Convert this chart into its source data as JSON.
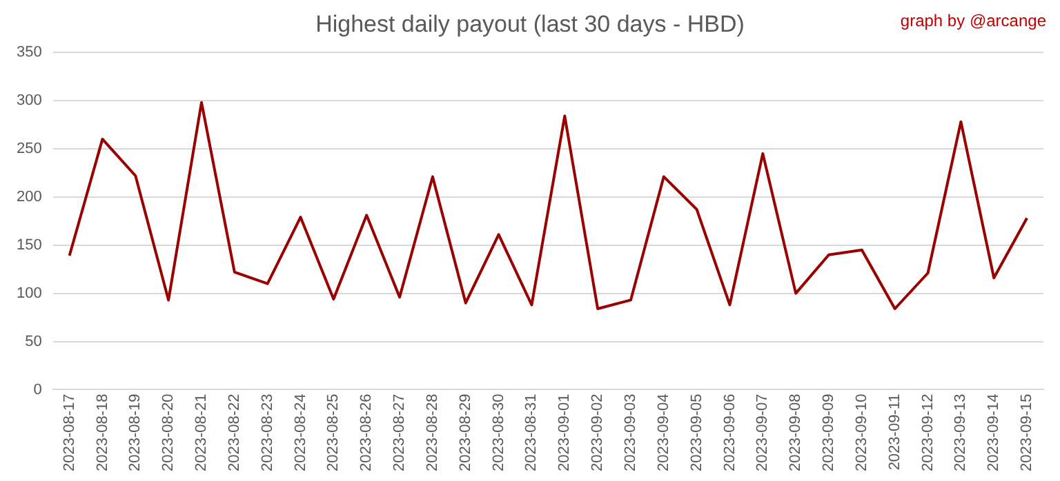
{
  "chart_data": {
    "type": "line",
    "title": "Highest daily payout (last 30 days - HBD)",
    "annotations": [
      "graph by @arcange"
    ],
    "categories": [
      "2023-08-17",
      "2023-08-18",
      "2023-08-19",
      "2023-08-20",
      "2023-08-21",
      "2023-08-22",
      "2023-08-23",
      "2023-08-24",
      "2023-08-25",
      "2023-08-26",
      "2023-08-27",
      "2023-08-28",
      "2023-08-29",
      "2023-08-30",
      "2023-08-31",
      "2023-09-01",
      "2023-09-02",
      "2023-09-03",
      "2023-09-04",
      "2023-09-05",
      "2023-09-06",
      "2023-09-07",
      "2023-09-08",
      "2023-09-09",
      "2023-09-10",
      "2023-09-11",
      "2023-09-12",
      "2023-09-13",
      "2023-09-14",
      "2023-09-15"
    ],
    "series": [
      {
        "color": "#990000",
        "values": [
          139,
          260,
          222,
          93,
          298,
          122,
          110,
          179,
          94,
          181,
          96,
          221,
          90,
          161,
          88,
          284,
          84,
          93,
          221,
          187,
          88,
          245,
          100,
          140,
          145,
          84,
          121,
          278,
          116,
          178
        ]
      }
    ],
    "ylim": [
      0,
      350
    ],
    "yticks": [
      0,
      50,
      100,
      150,
      200,
      250,
      300,
      350
    ],
    "grid": "y",
    "legend": false,
    "marker": "none",
    "line_style": "solid"
  }
}
